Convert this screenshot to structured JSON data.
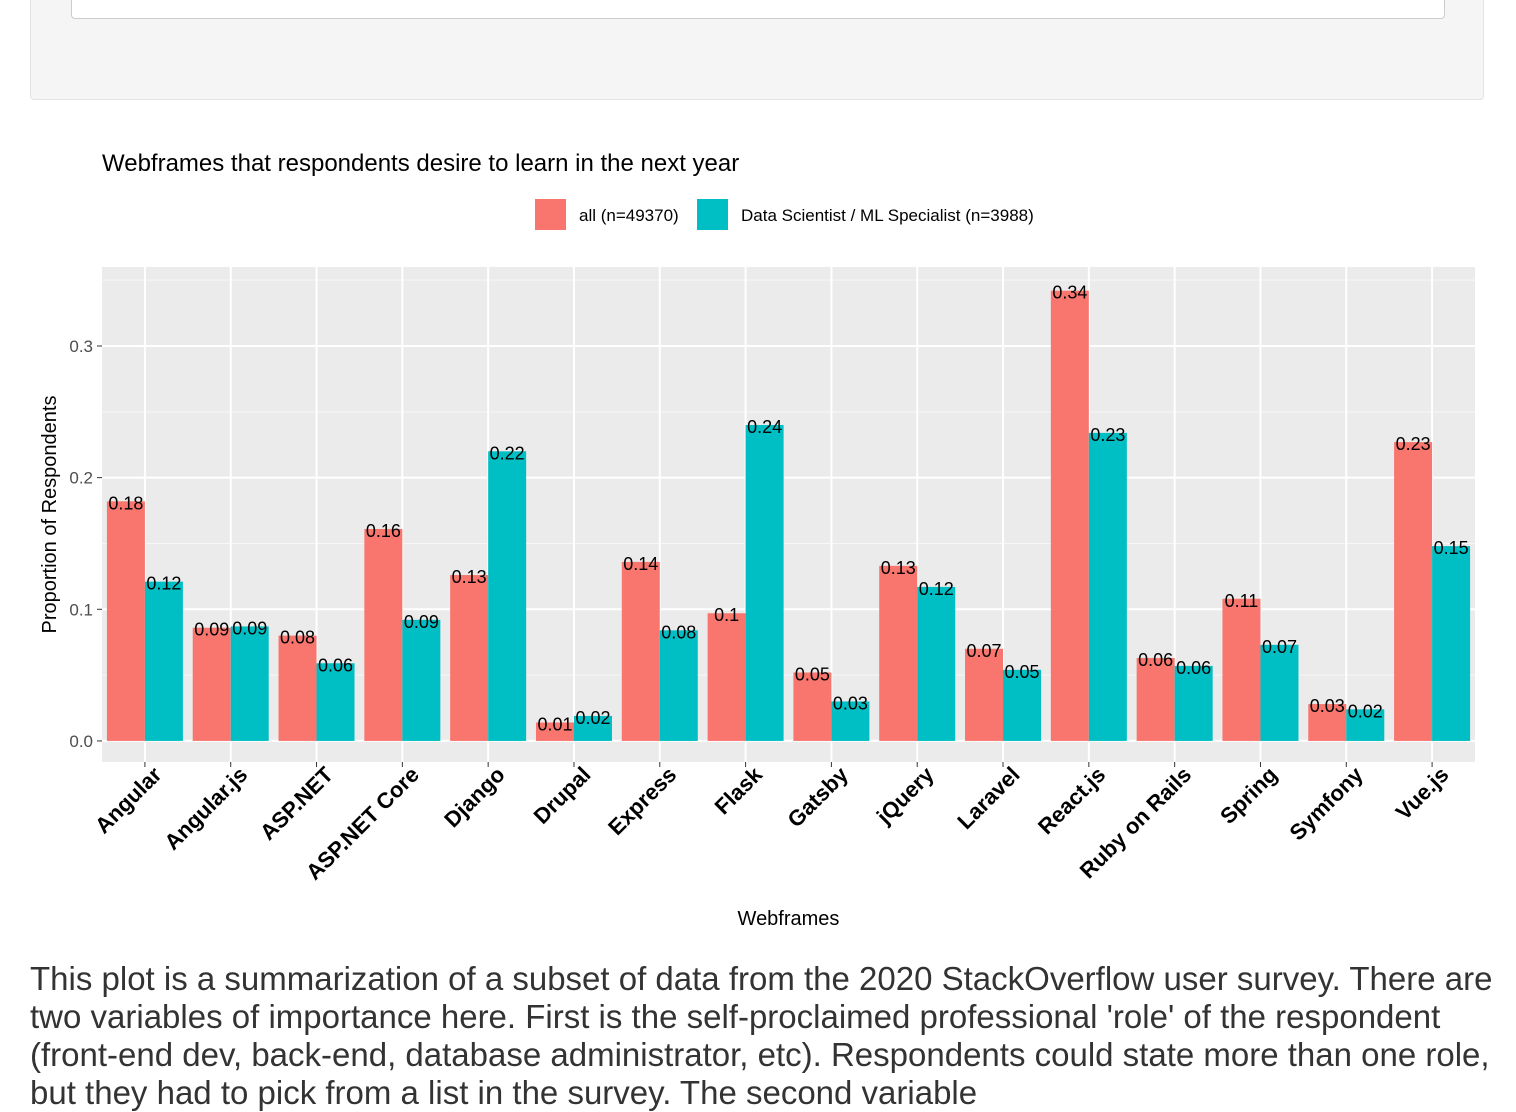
{
  "control": {
    "selected_value": "p"
  },
  "chart_data": {
    "type": "bar",
    "title": "Webframes that respondents desire to learn in the next year",
    "xlabel": "Webframes",
    "ylabel": "Proportion of Respondents",
    "ylim": [
      -0.016,
      0.36
    ],
    "yticks": [
      0.0,
      0.1,
      0.2,
      0.3
    ],
    "ytick_labels": [
      "0.0",
      "0.1",
      "0.2",
      "0.3"
    ],
    "grid": true,
    "legend_position": "top",
    "categories": [
      "Angular",
      "Angular.js",
      "ASP.NET",
      "ASP.NET Core",
      "Django",
      "Drupal",
      "Express",
      "Flask",
      "Gatsby",
      "jQuery",
      "Laravel",
      "React.js",
      "Ruby on Rails",
      "Spring",
      "Symfony",
      "Vue.js"
    ],
    "series": [
      {
        "name": "all (n=49370)",
        "color": "#F8766D",
        "values": [
          0.182,
          0.086,
          0.08,
          0.161,
          0.126,
          0.014,
          0.136,
          0.097,
          0.052,
          0.133,
          0.07,
          0.342,
          0.063,
          0.108,
          0.028,
          0.227
        ],
        "labels": [
          "0.18",
          "0.09",
          "0.08",
          "0.16",
          "0.13",
          "0.01",
          "0.14",
          "0.1",
          "0.05",
          "0.13",
          "0.07",
          "0.34",
          "0.06",
          "0.11",
          "0.03",
          "0.23"
        ]
      },
      {
        "name": "Data Scientist  / ML Specialist (n=3988)",
        "color": "#00BFC4",
        "values": [
          0.121,
          0.087,
          0.059,
          0.092,
          0.22,
          0.019,
          0.084,
          0.24,
          0.03,
          0.117,
          0.054,
          0.234,
          0.057,
          0.073,
          0.024,
          0.148
        ],
        "labels": [
          "0.12",
          "0.09",
          "0.06",
          "0.09",
          "0.22",
          "0.02",
          "0.08",
          "0.24",
          "0.03",
          "0.12",
          "0.05",
          "0.23",
          "0.06",
          "0.07",
          "0.02",
          "0.15"
        ]
      }
    ]
  },
  "description": "This plot is a summarization of a subset of data from the 2020 StackOverflow user survey. There are two variables of importance here. First is the self-proclaimed professional 'role' of the respondent (front-end dev, back-end, database administrator, etc). Respondents could state more than one role, but they had to pick from a list in the survey. The second variable"
}
